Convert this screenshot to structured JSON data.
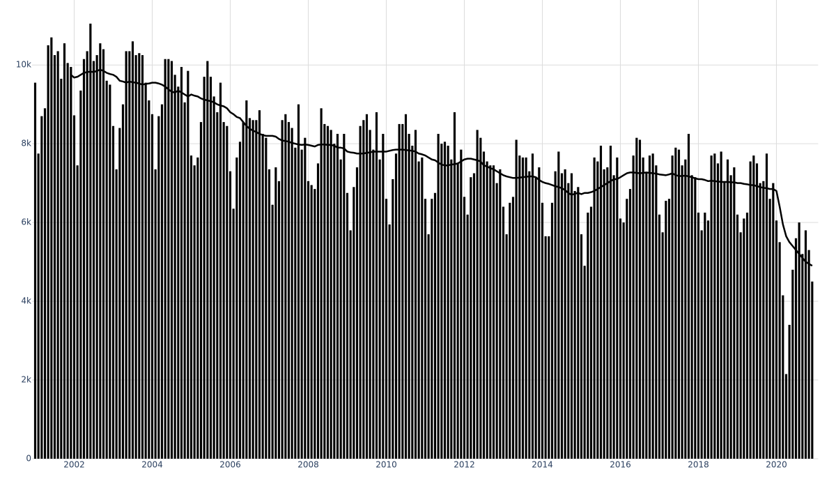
{
  "chart_data": {
    "type": "bar",
    "x": [
      2001,
      2001.083,
      2001.167,
      2001.25,
      2001.333,
      2001.417,
      2001.5,
      2001.583,
      2001.667,
      2001.75,
      2001.833,
      2001.917,
      2002,
      2002.083,
      2002.167,
      2002.25,
      2002.333,
      2002.417,
      2002.5,
      2002.583,
      2002.667,
      2002.75,
      2002.833,
      2002.917,
      2003,
      2003.083,
      2003.167,
      2003.25,
      2003.333,
      2003.417,
      2003.5,
      2003.583,
      2003.667,
      2003.75,
      2003.833,
      2003.917,
      2004,
      2004.083,
      2004.167,
      2004.25,
      2004.333,
      2004.417,
      2004.5,
      2004.583,
      2004.667,
      2004.75,
      2004.833,
      2004.917,
      2005,
      2005.083,
      2005.167,
      2005.25,
      2005.333,
      2005.417,
      2005.5,
      2005.583,
      2005.667,
      2005.75,
      2005.833,
      2005.917,
      2006,
      2006.083,
      2006.167,
      2006.25,
      2006.333,
      2006.417,
      2006.5,
      2006.583,
      2006.667,
      2006.75,
      2006.833,
      2006.917,
      2007,
      2007.083,
      2007.167,
      2007.25,
      2007.333,
      2007.417,
      2007.5,
      2007.583,
      2007.667,
      2007.75,
      2007.833,
      2007.917,
      2008,
      2008.083,
      2008.167,
      2008.25,
      2008.333,
      2008.417,
      2008.5,
      2008.583,
      2008.667,
      2008.75,
      2008.833,
      2008.917,
      2009,
      2009.083,
      2009.167,
      2009.25,
      2009.333,
      2009.417,
      2009.5,
      2009.583,
      2009.667,
      2009.75,
      2009.833,
      2009.917,
      2010,
      2010.083,
      2010.167,
      2010.25,
      2010.333,
      2010.417,
      2010.5,
      2010.583,
      2010.667,
      2010.75,
      2010.833,
      2010.917,
      2011,
      2011.083,
      2011.167,
      2011.25,
      2011.333,
      2011.417,
      2011.5,
      2011.583,
      2011.667,
      2011.75,
      2011.833,
      2011.917,
      2012,
      2012.083,
      2012.167,
      2012.25,
      2012.333,
      2012.417,
      2012.5,
      2012.583,
      2012.667,
      2012.75,
      2012.833,
      2012.917,
      2013,
      2013.083,
      2013.167,
      2013.25,
      2013.333,
      2013.417,
      2013.5,
      2013.583,
      2013.667,
      2013.75,
      2013.833,
      2013.917,
      2014,
      2014.083,
      2014.167,
      2014.25,
      2014.333,
      2014.417,
      2014.5,
      2014.583,
      2014.667,
      2014.75,
      2014.833,
      2014.917,
      2015,
      2015.083,
      2015.167,
      2015.25,
      2015.333,
      2015.417,
      2015.5,
      2015.583,
      2015.667,
      2015.75,
      2015.833,
      2015.917,
      2016,
      2016.083,
      2016.167,
      2016.25,
      2016.333,
      2016.417,
      2016.5,
      2016.583,
      2016.667,
      2016.75,
      2016.833,
      2016.917,
      2017,
      2017.083,
      2017.167,
      2017.25,
      2017.333,
      2017.417,
      2017.5,
      2017.583,
      2017.667,
      2017.75,
      2017.833,
      2017.917,
      2018,
      2018.083,
      2018.167,
      2018.25,
      2018.333,
      2018.417,
      2018.5,
      2018.583,
      2018.667,
      2018.75,
      2018.833,
      2018.917,
      2019,
      2019.083,
      2019.167,
      2019.25,
      2019.333,
      2019.417,
      2019.5,
      2019.583,
      2019.667,
      2019.75,
      2019.833,
      2019.917,
      2020,
      2020.083,
      2020.167,
      2020.25,
      2020.333,
      2020.417,
      2020.5,
      2020.583,
      2020.667,
      2020.75,
      2020.833,
      2020.917
    ],
    "series": [
      {
        "type": "bar",
        "color": "#000000",
        "values": [
          9550,
          7750,
          8700,
          8900,
          10500,
          10700,
          10250,
          10350,
          9650,
          10550,
          10050,
          9950,
          8720,
          7450,
          9350,
          10150,
          10350,
          11050,
          10100,
          10250,
          10550,
          10400,
          9600,
          9500,
          8450,
          7350,
          8400,
          9000,
          10350,
          10350,
          10600,
          10250,
          10300,
          10250,
          9550,
          9100,
          8750,
          7350,
          8700,
          9000,
          10150,
          10150,
          10100,
          9750,
          9450,
          9950,
          9050,
          9850,
          7700,
          7450,
          7650,
          8550,
          9700,
          10100,
          9700,
          9200,
          8800,
          9550,
          8550,
          8450,
          7300,
          6350,
          7650,
          8050,
          8550,
          9100,
          8650,
          8600,
          8600,
          8850,
          8250,
          8150,
          7350,
          6450,
          7400,
          7050,
          8600,
          8750,
          8550,
          8400,
          7900,
          9000,
          7850,
          8150,
          7050,
          6950,
          6850,
          7500,
          8900,
          8500,
          8450,
          8350,
          8000,
          8250,
          7600,
          8250,
          6750,
          5800,
          6900,
          7400,
          8450,
          8600,
          8750,
          8350,
          7850,
          8800,
          7600,
          8250,
          6600,
          5950,
          7100,
          7750,
          8500,
          8500,
          8750,
          8250,
          7950,
          8350,
          7550,
          7650,
          6600,
          5700,
          6600,
          6750,
          8250,
          8000,
          8050,
          7950,
          7600,
          8800,
          7500,
          7850,
          6650,
          6200,
          7150,
          7250,
          8350,
          8150,
          7800,
          7550,
          7450,
          7450,
          7000,
          7350,
          6400,
          5700,
          6500,
          6650,
          8100,
          7700,
          7650,
          7650,
          7300,
          7750,
          7150,
          7400,
          6500,
          5650,
          5650,
          6500,
          7300,
          7800,
          7250,
          7350,
          7000,
          7250,
          6800,
          6900,
          5700,
          4900,
          6250,
          6400,
          7650,
          7550,
          7950,
          7350,
          7400,
          7950,
          7200,
          7650,
          6100,
          6000,
          6600,
          6850,
          7700,
          8150,
          8100,
          7650,
          7250,
          7700,
          7750,
          7450,
          6200,
          5750,
          6550,
          6600,
          7700,
          7900,
          7850,
          7450,
          7600,
          8250,
          7200,
          7150,
          6250,
          5800,
          6250,
          6050,
          7700,
          7750,
          7500,
          7800,
          7050,
          7600,
          7200,
          7400,
          6200,
          5750,
          6100,
          6250,
          7550,
          7700,
          7500,
          7000,
          7050,
          7750,
          6600,
          7000,
          6050,
          5500,
          4150,
          2150,
          3400,
          4800,
          5600,
          6000,
          5200,
          5800,
          5300,
          4500
        ]
      },
      {
        "type": "line",
        "color": "#000000",
        "values": [
          null,
          null,
          null,
          null,
          null,
          null,
          null,
          null,
          null,
          null,
          null,
          9750,
          9680,
          9700,
          9750,
          9800,
          9820,
          9830,
          9820,
          9850,
          9880,
          9850,
          9800,
          9770,
          9750,
          9700,
          9600,
          9580,
          9550,
          9580,
          9560,
          9550,
          9530,
          9500,
          9520,
          9530,
          9550,
          9550,
          9530,
          9500,
          9450,
          9380,
          9320,
          9300,
          9350,
          9300,
          9250,
          9200,
          9250,
          9220,
          9200,
          9150,
          9120,
          9100,
          9080,
          9050,
          9000,
          8970,
          8950,
          8900,
          8800,
          8750,
          8680,
          8650,
          8550,
          8450,
          8380,
          8330,
          8300,
          8250,
          8220,
          8200,
          8200,
          8200,
          8180,
          8120,
          8080,
          8070,
          8050,
          8020,
          8000,
          7980,
          7970,
          7980,
          7970,
          7950,
          7930,
          7970,
          7980,
          7980,
          7970,
          7970,
          7950,
          7900,
          7900,
          7880,
          7800,
          7780,
          7770,
          7750,
          7750,
          7750,
          7770,
          7780,
          7800,
          7800,
          7800,
          7800,
          7800,
          7820,
          7840,
          7850,
          7850,
          7850,
          7840,
          7830,
          7820,
          7800,
          7750,
          7730,
          7700,
          7650,
          7600,
          7580,
          7520,
          7470,
          7450,
          7450,
          7470,
          7480,
          7500,
          7550,
          7600,
          7620,
          7620,
          7600,
          7580,
          7550,
          7450,
          7420,
          7380,
          7350,
          7300,
          7250,
          7200,
          7170,
          7150,
          7130,
          7130,
          7140,
          7150,
          7160,
          7170,
          7170,
          7150,
          7080,
          7030,
          7000,
          6980,
          6950,
          6920,
          6900,
          6870,
          6820,
          6750,
          6700,
          6730,
          6750,
          6720,
          6750,
          6750,
          6770,
          6800,
          6850,
          6900,
          6950,
          7000,
          7050,
          7100,
          7100,
          7150,
          7200,
          7250,
          7270,
          7270,
          7260,
          7250,
          7260,
          7270,
          7260,
          7250,
          7240,
          7220,
          7210,
          7200,
          7220,
          7250,
          7200,
          7180,
          7180,
          7190,
          7170,
          7150,
          7120,
          7100,
          7100,
          7080,
          7050,
          7060,
          7050,
          7040,
          7030,
          7030,
          7030,
          7020,
          7020,
          7000,
          7000,
          6980,
          6970,
          6950,
          6950,
          6920,
          6900,
          6880,
          6870,
          6850,
          6850,
          6800,
          6400,
          5950,
          5650,
          5500,
          5400,
          5300,
          5200,
          5100,
          5000,
          4950,
          4900
        ]
      }
    ],
    "xlim": [
      2000.92,
      2021.07
    ],
    "xticks": [
      2002,
      2004,
      2006,
      2008,
      2010,
      2012,
      2014,
      2016,
      2018,
      2020
    ],
    "ylim": [
      0,
      11650
    ],
    "yticks": [
      0,
      {
        "value": 2000,
        "label": "2k"
      },
      {
        "value": 4000,
        "label": "4k"
      },
      {
        "value": 6000,
        "label": "6k"
      },
      {
        "value": 8000,
        "label": "8k"
      },
      {
        "value": 10000,
        "label": "10k"
      }
    ],
    "grid": true
  }
}
